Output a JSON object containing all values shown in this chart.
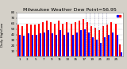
{
  "title": "Milwaukee Weather Dew Point=56.95",
  "high_values": [
    58,
    55,
    60,
    58,
    58,
    60,
    62,
    65,
    62,
    60,
    65,
    60,
    62,
    60,
    62,
    65,
    68,
    62,
    55,
    52,
    48,
    55,
    58,
    62,
    60,
    22
  ],
  "low_values": [
    40,
    38,
    42,
    40,
    40,
    42,
    44,
    48,
    42,
    40,
    48,
    40,
    44,
    40,
    44,
    48,
    50,
    44,
    35,
    30,
    25,
    35,
    40,
    44,
    40,
    8
  ],
  "bar_color_high": "#ff0000",
  "bar_color_low": "#0000ff",
  "background_color": "#d4d0c8",
  "plot_background": "#ffffff",
  "ylim_min": 0,
  "ylim_max": 80,
  "ytick_values": [
    10,
    20,
    30,
    40,
    50,
    60,
    70,
    80
  ],
  "title_fontsize": 4.5,
  "bar_width": 0.4,
  "dashed_region_start": 17,
  "dashed_region_end": 21,
  "x_tick_positions": [
    0,
    2,
    4,
    6,
    8,
    10,
    12,
    14,
    16,
    18,
    20,
    22,
    24
  ],
  "x_tick_labels": [
    "1",
    "3",
    "5",
    "7",
    "9",
    "11",
    "13",
    "15",
    "17",
    "19",
    "21",
    "23",
    "25"
  ]
}
